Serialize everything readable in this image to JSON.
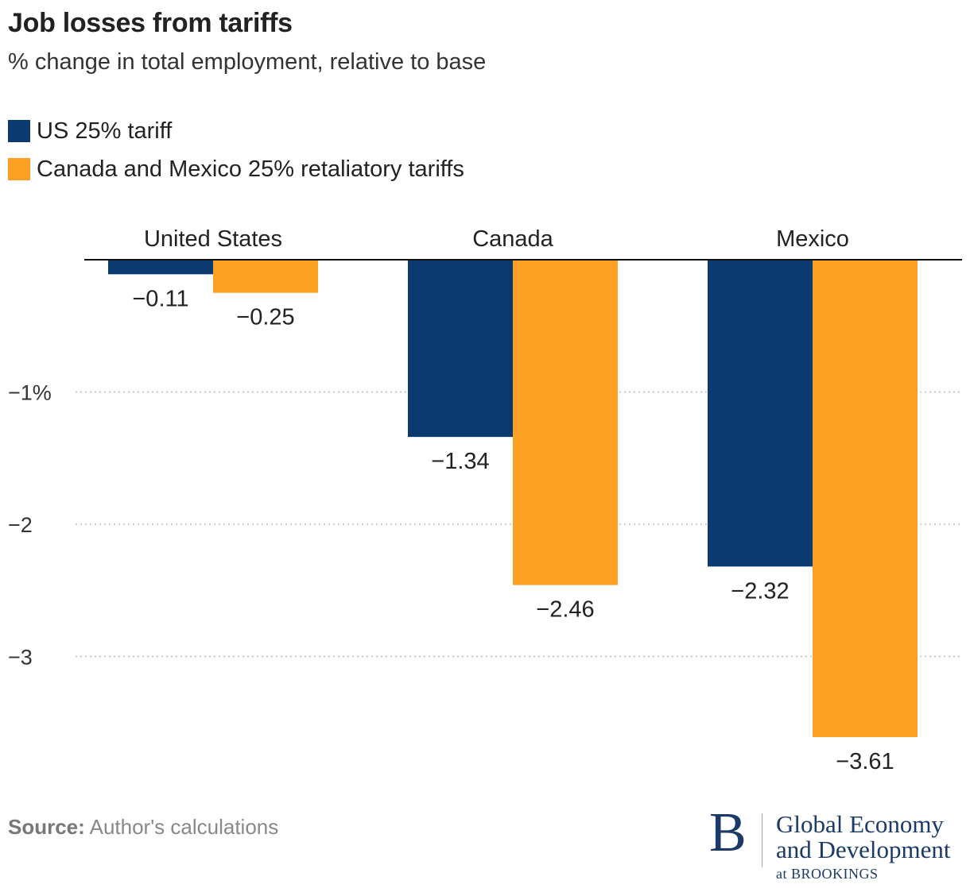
{
  "header": {
    "title": "Job losses from tariffs",
    "subtitle": "% change in total employment, relative to base"
  },
  "legend": {
    "items": [
      {
        "label": "US 25% tariff",
        "color": "#0b3a70"
      },
      {
        "label": "Canada and Mexico 25% retaliatory tariffs",
        "color": "#fba022"
      }
    ]
  },
  "footer": {
    "source_label": "Source:",
    "source_text": " Author's calculations",
    "logo": {
      "letter": "B",
      "line1": "Global Economy",
      "line2": "and Development",
      "line3": "at BROOKINGS"
    }
  },
  "chart_data": {
    "type": "bar",
    "orientation": "vertical",
    "categories": [
      "United States",
      "Canada",
      "Mexico"
    ],
    "series": [
      {
        "name": "US 25% tariff",
        "color": "#0b3a70",
        "values": [
          -0.11,
          -1.34,
          -2.32
        ],
        "labels": [
          "−0.11",
          "−1.34",
          "−2.32"
        ]
      },
      {
        "name": "Canada and Mexico 25% retaliatory tariffs",
        "color": "#fba022",
        "values": [
          -0.25,
          -2.46,
          -3.61
        ],
        "labels": [
          "−0.25",
          "−2.46",
          "−3.61"
        ]
      }
    ],
    "title": "Job losses from tariffs",
    "subtitle": "% change in total employment, relative to base",
    "ylim": [
      -3.61,
      0
    ],
    "yticks": [
      -1,
      -2,
      -3
    ],
    "ytick_labels": [
      "−1%",
      "−2",
      "−3"
    ],
    "category_labels_position": "top",
    "grid": true,
    "grid_style": "dotted",
    "legend_position": "top-left"
  }
}
